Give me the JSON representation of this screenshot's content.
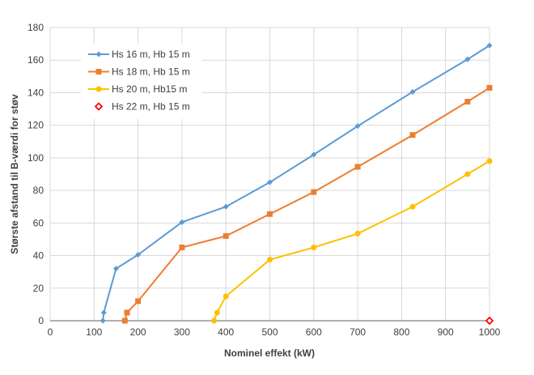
{
  "chart_data": {
    "type": "line",
    "title": "",
    "xlabel": "Nominel effekt (kW)",
    "ylabel": "Største afstand til B-værdi for støv",
    "xlim": [
      0,
      1000
    ],
    "ylim": [
      0,
      180
    ],
    "xticks": [
      0,
      100,
      200,
      300,
      400,
      500,
      600,
      700,
      800,
      900,
      1000
    ],
    "yticks": [
      0,
      20,
      40,
      60,
      80,
      100,
      120,
      140,
      160,
      180
    ],
    "grid": true,
    "legend_position": "top-left",
    "series": [
      {
        "name": "Hs  16 m, Hb 15 m",
        "color": "#5B9BD5",
        "marker": "diamond",
        "x": [
          120,
          122,
          150,
          200,
          300,
          400,
          500,
          600,
          700,
          825,
          950,
          1000
        ],
        "y": [
          0,
          5,
          32,
          40.5,
          60.5,
          70,
          85,
          102,
          119.5,
          140.5,
          160.5,
          169
        ]
      },
      {
        "name": "Hs 18 m, Hb 15 m",
        "color": "#ED7D31",
        "marker": "square",
        "x": [
          170,
          175,
          200,
          300,
          400,
          500,
          600,
          700,
          825,
          950,
          1000
        ],
        "y": [
          0,
          5,
          12,
          45,
          52,
          65.5,
          79,
          94.5,
          114,
          134.5,
          143
        ]
      },
      {
        "name": "Hs  20 m, Hb15 m",
        "color": "#FFC000",
        "marker": "circle",
        "x": [
          373,
          380,
          400,
          500,
          600,
          700,
          825,
          950,
          1000
        ],
        "y": [
          0,
          5,
          15,
          37.5,
          45,
          53.5,
          70,
          90,
          98
        ]
      },
      {
        "name": "Hs  22 m, Hb 15 m",
        "color": "#FF0000",
        "marker": "open-diamond",
        "x": [
          1000
        ],
        "y": [
          0
        ]
      }
    ]
  }
}
